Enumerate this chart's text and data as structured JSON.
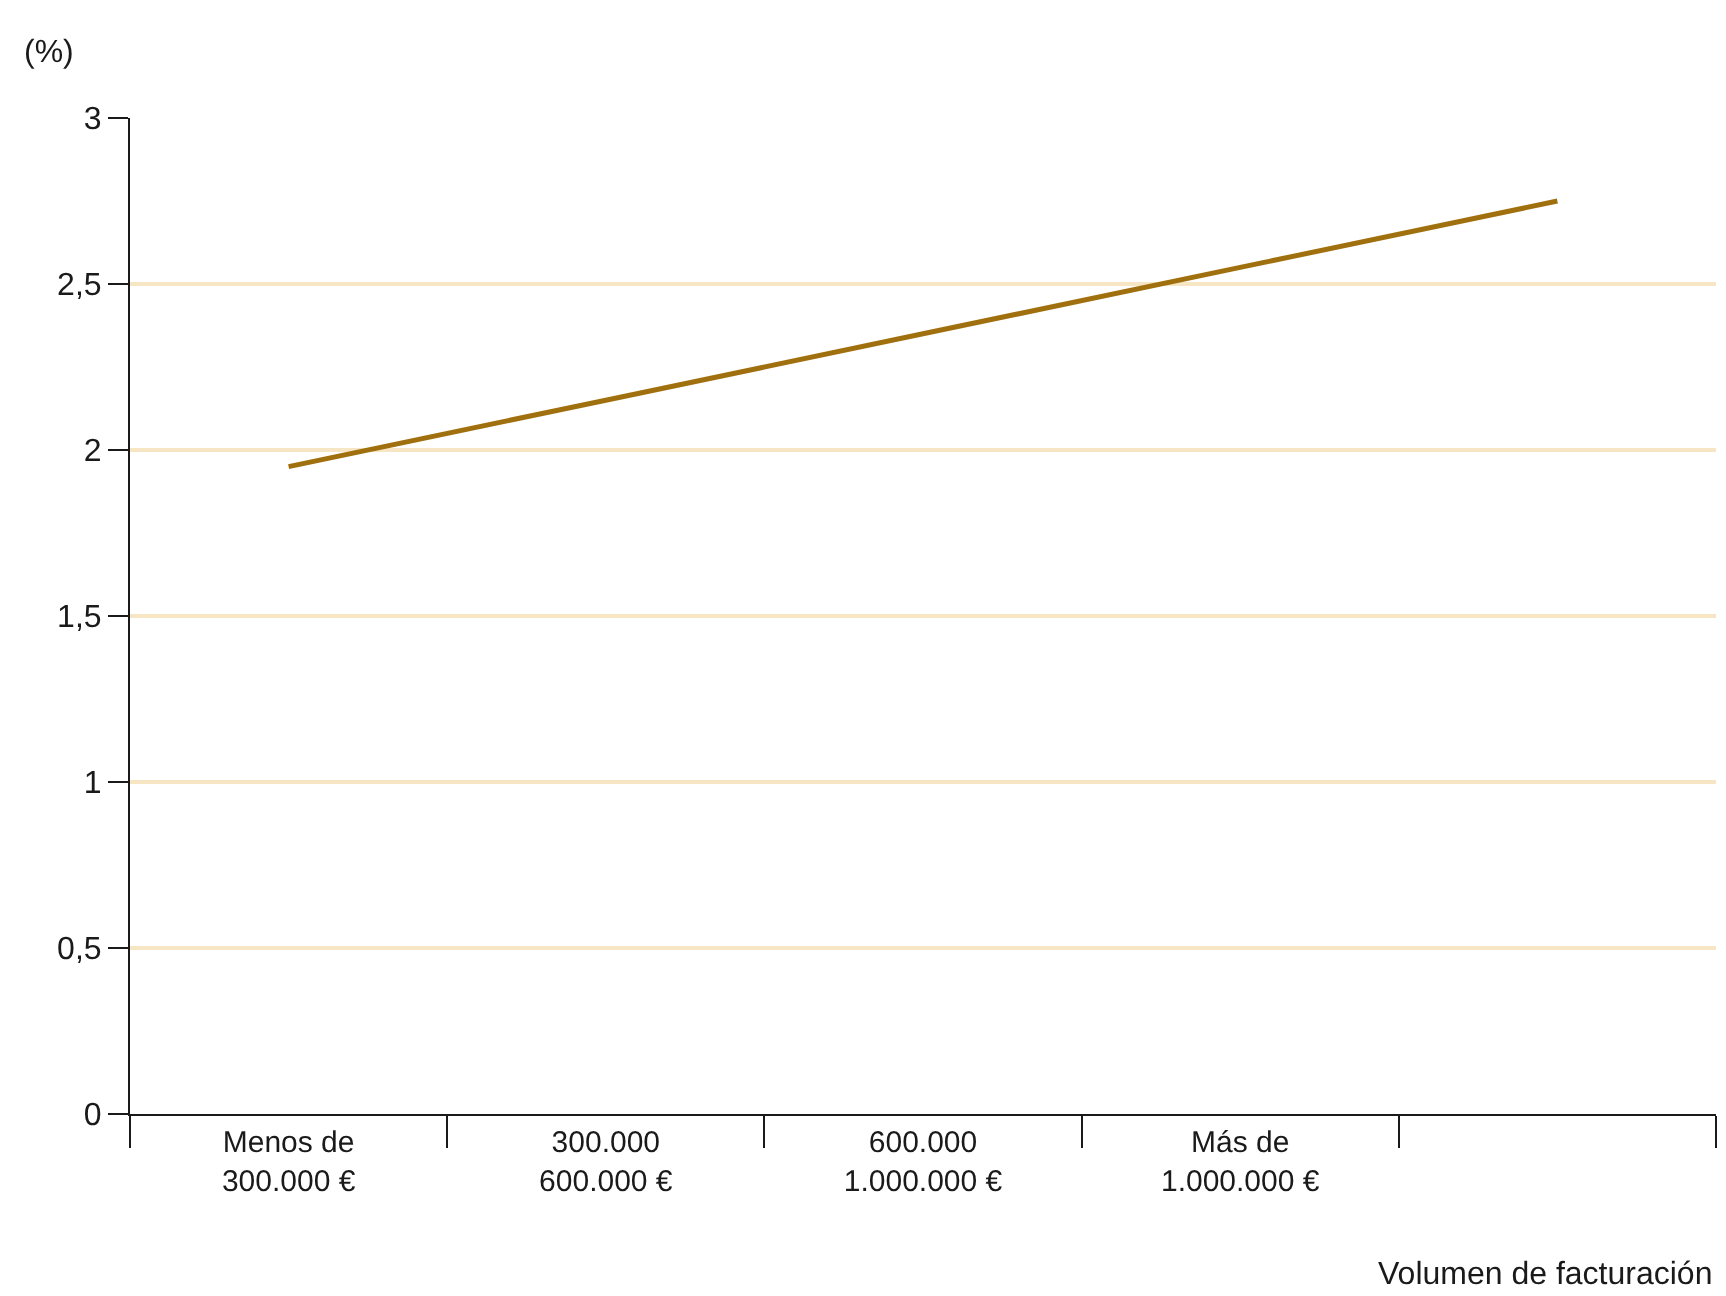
{
  "chart_data": {
    "type": "line",
    "ylabel": "(%)",
    "xlabel": "Volumen de facturación",
    "categories": [
      "Menos de\n300.000 €",
      "300.000\n600.000 €",
      "600.000\n1.000.000 €",
      "Más de\n1.000.000 €",
      null
    ],
    "series": [
      {
        "color": "#a0700e",
        "values": [
          1.95,
          2.15,
          2.35,
          2.55,
          2.75
        ]
      }
    ],
    "ylim": [
      0,
      3
    ],
    "yticks": [
      0,
      {
        "value": 0.5,
        "label": "0,5"
      },
      1,
      {
        "value": 1.5,
        "label": "1,5"
      },
      2,
      {
        "value": 2.5,
        "label": "2,5"
      },
      3
    ],
    "grid": "y",
    "marker": "none",
    "line_style": "solid"
  }
}
